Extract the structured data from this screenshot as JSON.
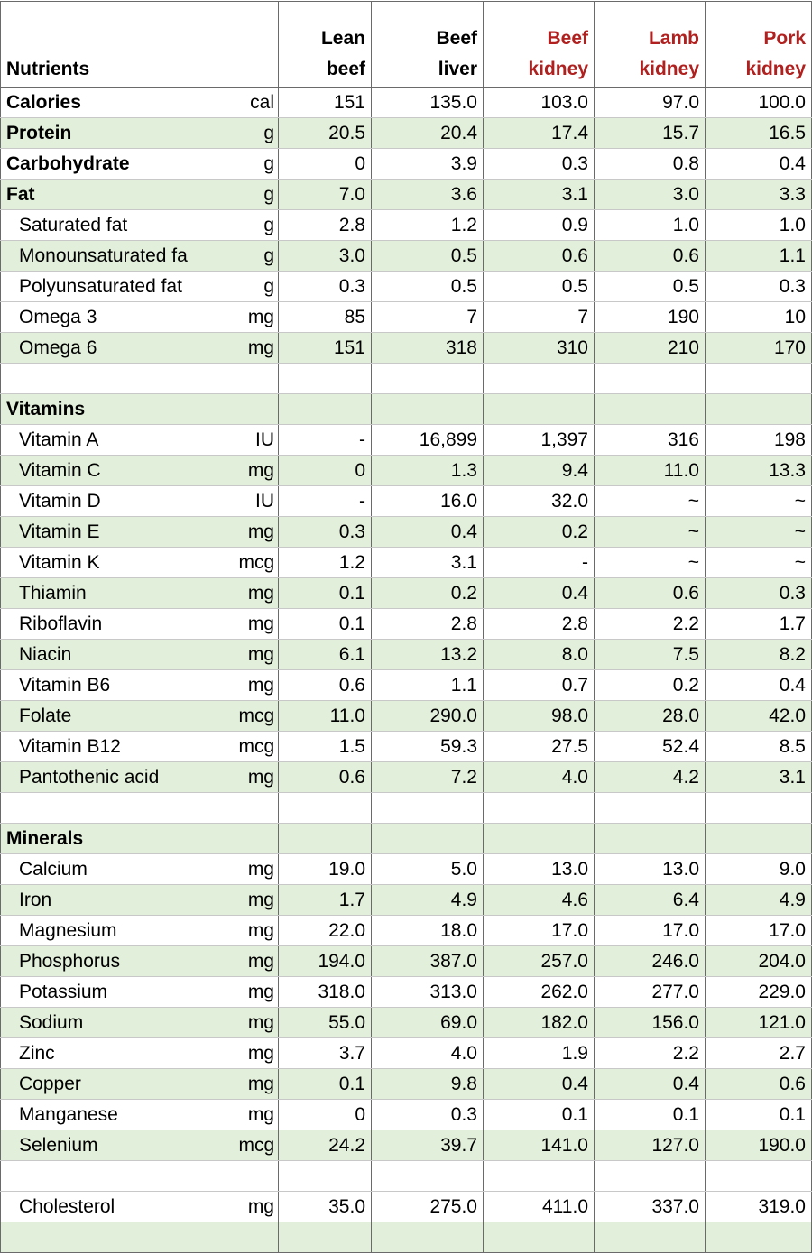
{
  "header": {
    "label": "Nutrients",
    "columns": [
      {
        "text": "Lean\nbeef",
        "highlight": false
      },
      {
        "text": "Beef\nliver",
        "highlight": false
      },
      {
        "text": "Beef\nkidney",
        "highlight": true
      },
      {
        "text": "Lamb\nkidney",
        "highlight": true
      },
      {
        "text": "Pork\nkidney",
        "highlight": true
      }
    ]
  },
  "sections": [
    {
      "rows": [
        {
          "name": "Calories",
          "unit": "cal",
          "bold": true,
          "values": [
            "151",
            "135.0",
            "103.0",
            "97.0",
            "100.0"
          ]
        },
        {
          "name": "Protein",
          "unit": "g",
          "bold": true,
          "values": [
            "20.5",
            "20.4",
            "17.4",
            "15.7",
            "16.5"
          ]
        },
        {
          "name": "Carbohydrate",
          "unit": "g",
          "bold": true,
          "values": [
            "0",
            "3.9",
            "0.3",
            "0.8",
            "0.4"
          ]
        },
        {
          "name": "Fat",
          "unit": "g",
          "bold": true,
          "values": [
            "7.0",
            "3.6",
            "3.1",
            "3.0",
            "3.3"
          ]
        },
        {
          "name": "Saturated fat",
          "unit": "g",
          "values": [
            "2.8",
            "1.2",
            "0.9",
            "1.0",
            "1.0"
          ]
        },
        {
          "name": "Monounsaturated fa",
          "unit": "g",
          "values": [
            "3.0",
            "0.5",
            "0.6",
            "0.6",
            "1.1"
          ]
        },
        {
          "name": "Polyunsaturated fat",
          "unit": "g",
          "values": [
            "0.3",
            "0.5",
            "0.5",
            "0.5",
            "0.3"
          ]
        },
        {
          "name": "Omega 3",
          "unit": "mg",
          "values": [
            "85",
            "7",
            "7",
            "190",
            "10"
          ]
        },
        {
          "name": "Omega 6",
          "unit": "mg",
          "values": [
            "151",
            "318",
            "310",
            "210",
            "170"
          ]
        }
      ]
    },
    {
      "title": "Vitamins",
      "rows": [
        {
          "name": "Vitamin A",
          "unit": "IU",
          "values": [
            "-",
            "16,899",
            "1,397",
            "316",
            "198"
          ]
        },
        {
          "name": "Vitamin C",
          "unit": "mg",
          "values": [
            "0",
            "1.3",
            "9.4",
            "11.0",
            "13.3"
          ]
        },
        {
          "name": "Vitamin D",
          "unit": "IU",
          "values": [
            "-",
            "16.0",
            "32.0",
            "~",
            "~"
          ]
        },
        {
          "name": "Vitamin E",
          "unit": "mg",
          "values": [
            "0.3",
            "0.4",
            "0.2",
            "~",
            "~"
          ]
        },
        {
          "name": "Vitamin K",
          "unit": "mcg",
          "values": [
            "1.2",
            "3.1",
            "-",
            "~",
            "~"
          ]
        },
        {
          "name": "Thiamin",
          "unit": "mg",
          "values": [
            "0.1",
            "0.2",
            "0.4",
            "0.6",
            "0.3"
          ]
        },
        {
          "name": "Riboflavin",
          "unit": "mg",
          "values": [
            "0.1",
            "2.8",
            "2.8",
            "2.2",
            "1.7"
          ]
        },
        {
          "name": "Niacin",
          "unit": "mg",
          "values": [
            "6.1",
            "13.2",
            "8.0",
            "7.5",
            "8.2"
          ]
        },
        {
          "name": "Vitamin B6",
          "unit": "mg",
          "values": [
            "0.6",
            "1.1",
            "0.7",
            "0.2",
            "0.4"
          ]
        },
        {
          "name": "Folate",
          "unit": "mcg",
          "values": [
            "11.0",
            "290.0",
            "98.0",
            "28.0",
            "42.0"
          ]
        },
        {
          "name": "Vitamin B12",
          "unit": "mcg",
          "values": [
            "1.5",
            "59.3",
            "27.5",
            "52.4",
            "8.5"
          ]
        },
        {
          "name": "Pantothenic acid",
          "unit": "mg",
          "values": [
            "0.6",
            "7.2",
            "4.0",
            "4.2",
            "3.1"
          ]
        }
      ]
    },
    {
      "title": "Minerals",
      "rows": [
        {
          "name": "Calcium",
          "unit": "mg",
          "values": [
            "19.0",
            "5.0",
            "13.0",
            "13.0",
            "9.0"
          ]
        },
        {
          "name": "Iron",
          "unit": "mg",
          "values": [
            "1.7",
            "4.9",
            "4.6",
            "6.4",
            "4.9"
          ]
        },
        {
          "name": "Magnesium",
          "unit": "mg",
          "values": [
            "22.0",
            "18.0",
            "17.0",
            "17.0",
            "17.0"
          ]
        },
        {
          "name": "Phosphorus",
          "unit": "mg",
          "values": [
            "194.0",
            "387.0",
            "257.0",
            "246.0",
            "204.0"
          ]
        },
        {
          "name": "Potassium",
          "unit": "mg",
          "values": [
            "318.0",
            "313.0",
            "262.0",
            "277.0",
            "229.0"
          ]
        },
        {
          "name": "Sodium",
          "unit": "mg",
          "values": [
            "55.0",
            "69.0",
            "182.0",
            "156.0",
            "121.0"
          ]
        },
        {
          "name": "Zinc",
          "unit": "mg",
          "values": [
            "3.7",
            "4.0",
            "1.9",
            "2.2",
            "2.7"
          ]
        },
        {
          "name": "Copper",
          "unit": "mg",
          "values": [
            "0.1",
            "9.8",
            "0.4",
            "0.4",
            "0.6"
          ]
        },
        {
          "name": "Manganese",
          "unit": "mg",
          "values": [
            "0",
            "0.3",
            "0.1",
            "0.1",
            "0.1"
          ]
        },
        {
          "name": "Selenium",
          "unit": "mcg",
          "values": [
            "24.2",
            "39.7",
            "141.0",
            "127.0",
            "190.0"
          ]
        }
      ]
    },
    {
      "rows": [
        {
          "name": "Cholesterol",
          "unit": "mg",
          "values": [
            "35.0",
            "275.0",
            "411.0",
            "337.0",
            "319.0"
          ]
        }
      ]
    }
  ]
}
